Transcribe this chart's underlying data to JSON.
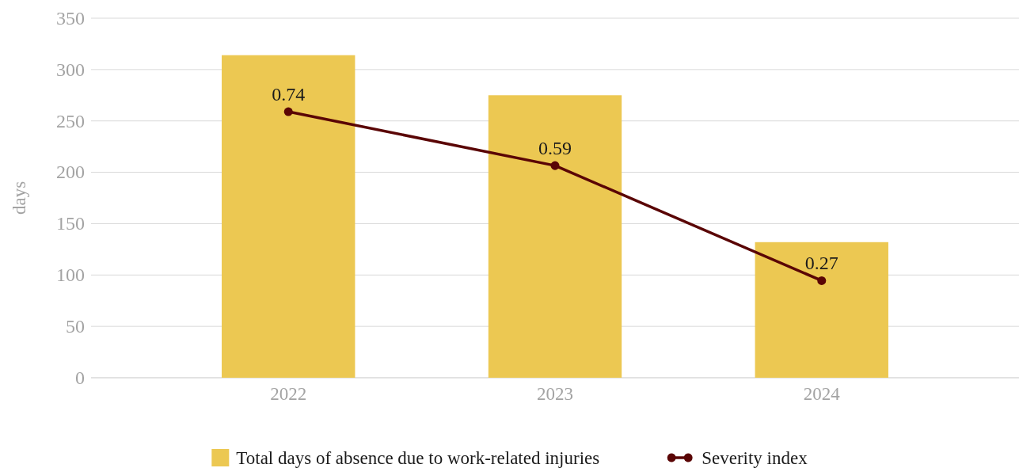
{
  "chart_data": {
    "type": "bar",
    "categories": [
      "2022",
      "2023",
      "2024"
    ],
    "ylabel": "days",
    "ylim": [
      0,
      350
    ],
    "yticks": [
      0,
      50,
      100,
      150,
      200,
      250,
      300,
      350
    ],
    "y2lim": [
      0,
      1
    ],
    "grid": "y",
    "legend": "bottom",
    "marker": "circle",
    "series": [
      {
        "name": "Total days of absence due to work-related injuries",
        "type": "bar",
        "color": "#ecc852",
        "values": [
          314,
          275,
          132
        ]
      },
      {
        "name": "Severity index",
        "type": "line",
        "axis": "y2",
        "color": "#5a0505",
        "values": [
          0.74,
          0.59,
          0.27
        ],
        "value_labels": [
          "0.74",
          "0.59",
          "0.27"
        ]
      }
    ]
  }
}
